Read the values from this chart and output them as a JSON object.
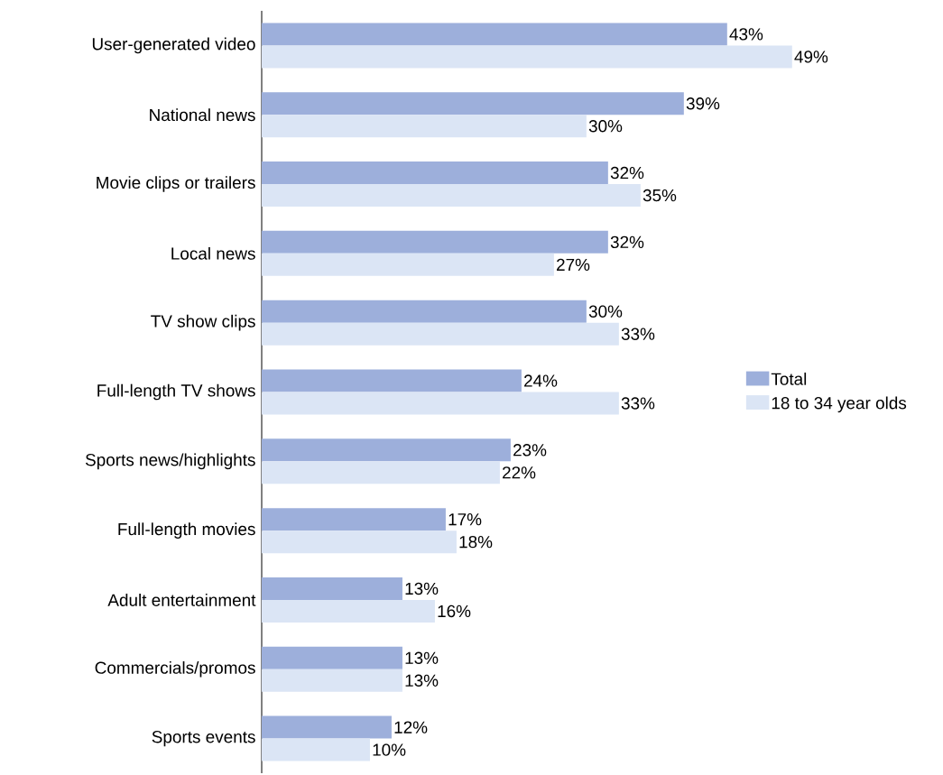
{
  "chart_data": {
    "type": "bar",
    "orientation": "horizontal",
    "categories": [
      "User-generated video",
      "National news",
      "Movie clips or trailers",
      "Local news",
      "TV show clips",
      "Full-length TV shows",
      "Sports news/highlights",
      "Full-length movies",
      "Adult entertainment",
      "Commercials/promos",
      "Sports events"
    ],
    "series": [
      {
        "name": "Total",
        "color": "#9dafdb",
        "values": [
          43,
          39,
          32,
          32,
          30,
          24,
          23,
          17,
          13,
          13,
          12
        ],
        "value_labels": [
          "43%",
          "39%",
          "32%",
          "32%",
          "30%",
          "24%",
          "23%",
          "17%",
          "13%",
          "13%",
          "12%"
        ]
      },
      {
        "name": "18 to 34 year olds",
        "color": "#dbe5f5",
        "values": [
          49,
          30,
          35,
          27,
          33,
          33,
          22,
          18,
          16,
          13,
          10
        ],
        "value_labels": [
          "49%",
          "30%",
          "35%",
          "27%",
          "33%",
          "33%",
          "22%",
          "18%",
          "16%",
          "13%",
          "10%"
        ]
      }
    ],
    "legend": "right"
  }
}
